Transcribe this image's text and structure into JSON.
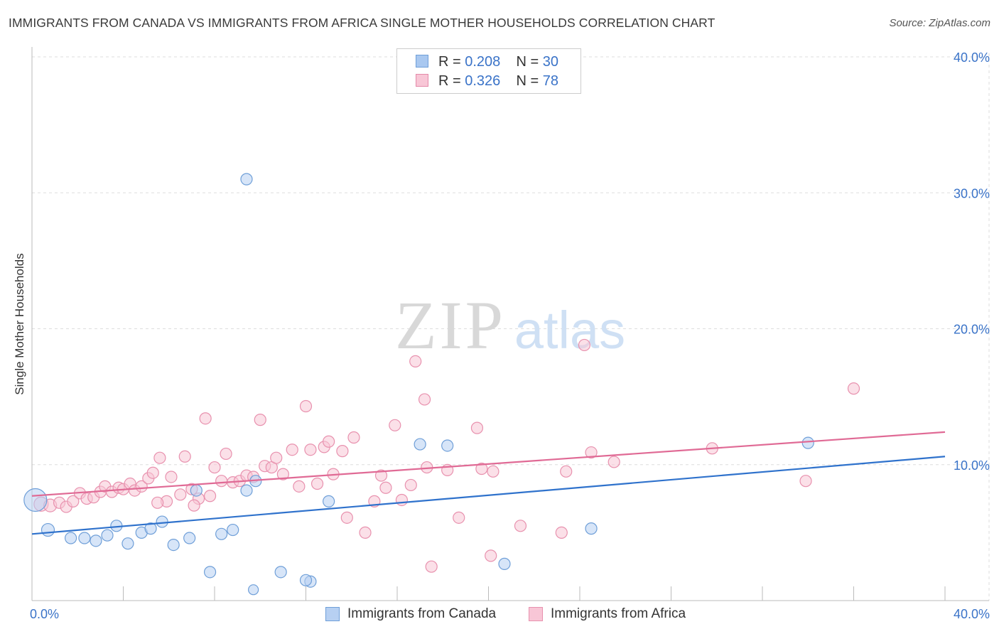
{
  "header": {
    "title": "IMMIGRANTS FROM CANADA VS IMMIGRANTS FROM AFRICA SINGLE MOTHER HOUSEHOLDS CORRELATION CHART",
    "source": "Source: ZipAtlas.com"
  },
  "watermark": {
    "zip": "ZIP",
    "atlas": "atlas"
  },
  "legend_stats": [
    {
      "r_label": "R = ",
      "r_value": "0.208",
      "n_label": "N = ",
      "n_value": "30",
      "color": "#a9c8f0",
      "border": "#6f9fd8"
    },
    {
      "r_label": "R = ",
      "r_value": "0.326",
      "n_label": "N = ",
      "n_value": "78",
      "color": "#f8c6d6",
      "border": "#e48aa9"
    }
  ],
  "colors": {
    "canada_fill": "#b7d0f2",
    "canada_stroke": "#6f9fd8",
    "canada_line": "#2f72cc",
    "africa_fill": "#f8c6d6",
    "africa_stroke": "#e891ae",
    "africa_line": "#e06a95",
    "axis_label": "#3a73c8",
    "grid": "#dddddd"
  },
  "chart_data": {
    "type": "scatter",
    "title": "IMMIGRANTS FROM CANADA VS IMMIGRANTS FROM AFRICA SINGLE MOTHER HOUSEHOLDS CORRELATION CHART",
    "xlabel": "",
    "ylabel": "Single Mother Households",
    "xlim": [
      0,
      40
    ],
    "ylim": [
      0,
      40
    ],
    "x_tick_labels": [
      "0.0%",
      "40.0%"
    ],
    "y_ticks": [
      10,
      20,
      30,
      40
    ],
    "y_tick_labels": [
      "10.0%",
      "20.0%",
      "30.0%",
      "40.0%"
    ],
    "grid": true,
    "legend_position": "bottom",
    "series": [
      {
        "name": "Immigrants from Canada",
        "r": 0.208,
        "n": 30,
        "trend": {
          "x": [
            0,
            40
          ],
          "y": [
            4.9,
            10.6
          ]
        },
        "points": [
          [
            0.15,
            7.4,
            16
          ],
          [
            0.7,
            5.2,
            9
          ],
          [
            1.7,
            4.6,
            8
          ],
          [
            2.3,
            4.6,
            8
          ],
          [
            2.8,
            4.4,
            8
          ],
          [
            3.3,
            4.8,
            8
          ],
          [
            3.7,
            5.5,
            8
          ],
          [
            4.2,
            4.2,
            8
          ],
          [
            4.8,
            5.0,
            8
          ],
          [
            5.2,
            5.3,
            8
          ],
          [
            5.7,
            5.8,
            8
          ],
          [
            6.2,
            4.1,
            8
          ],
          [
            6.9,
            4.6,
            8
          ],
          [
            7.2,
            8.1,
            8
          ],
          [
            7.8,
            2.1,
            8
          ],
          [
            8.3,
            4.9,
            8
          ],
          [
            8.8,
            5.2,
            8
          ],
          [
            9.4,
            8.1,
            8
          ],
          [
            9.8,
            8.8,
            8
          ],
          [
            9.4,
            31.0,
            8
          ],
          [
            10.9,
            2.1,
            8
          ],
          [
            12.2,
            1.4,
            8
          ],
          [
            13.0,
            7.3,
            8
          ],
          [
            17.0,
            11.5,
            8
          ],
          [
            18.2,
            11.4,
            8
          ],
          [
            20.7,
            2.7,
            8
          ],
          [
            24.5,
            5.3,
            8
          ],
          [
            34.0,
            11.6,
            8
          ],
          [
            12.0,
            1.5,
            8
          ],
          [
            9.7,
            0.8,
            7
          ]
        ]
      },
      {
        "name": "Immigrants from Africa",
        "r": 0.326,
        "n": 78,
        "trend": {
          "x": [
            0,
            40
          ],
          "y": [
            7.7,
            12.4
          ]
        },
        "points": [
          [
            0.4,
            7.1,
            10
          ],
          [
            0.8,
            7.0,
            9
          ],
          [
            1.2,
            7.2,
            8
          ],
          [
            1.5,
            6.9,
            8
          ],
          [
            1.8,
            7.3,
            8
          ],
          [
            2.1,
            7.9,
            8
          ],
          [
            2.4,
            7.5,
            8
          ],
          [
            2.7,
            7.6,
            8
          ],
          [
            3.0,
            8.0,
            8
          ],
          [
            3.2,
            8.4,
            8
          ],
          [
            3.5,
            8.0,
            8
          ],
          [
            3.8,
            8.3,
            8
          ],
          [
            4.0,
            8.2,
            8
          ],
          [
            4.3,
            8.6,
            8
          ],
          [
            4.5,
            8.1,
            8
          ],
          [
            4.8,
            8.4,
            8
          ],
          [
            5.1,
            9.0,
            8
          ],
          [
            5.3,
            9.4,
            8
          ],
          [
            5.6,
            10.5,
            8
          ],
          [
            5.9,
            7.3,
            8
          ],
          [
            6.1,
            9.1,
            8
          ],
          [
            6.5,
            7.8,
            8
          ],
          [
            6.7,
            10.6,
            8
          ],
          [
            7.0,
            8.2,
            8
          ],
          [
            7.3,
            7.5,
            8
          ],
          [
            7.6,
            13.4,
            8
          ],
          [
            7.8,
            7.7,
            8
          ],
          [
            8.0,
            9.8,
            8
          ],
          [
            8.3,
            8.8,
            8
          ],
          [
            8.5,
            10.8,
            8
          ],
          [
            8.8,
            8.7,
            8
          ],
          [
            9.1,
            8.8,
            8
          ],
          [
            9.4,
            9.2,
            8
          ],
          [
            9.7,
            9.1,
            8
          ],
          [
            10.0,
            13.3,
            8
          ],
          [
            10.2,
            9.9,
            8
          ],
          [
            10.5,
            9.8,
            8
          ],
          [
            10.7,
            10.5,
            8
          ],
          [
            11.0,
            9.3,
            8
          ],
          [
            11.4,
            11.1,
            8
          ],
          [
            11.7,
            8.4,
            8
          ],
          [
            12.0,
            14.3,
            8
          ],
          [
            12.2,
            11.1,
            8
          ],
          [
            12.5,
            8.6,
            8
          ],
          [
            12.8,
            11.3,
            8
          ],
          [
            13.0,
            11.7,
            8
          ],
          [
            13.2,
            9.3,
            8
          ],
          [
            13.6,
            11.0,
            8
          ],
          [
            13.8,
            6.1,
            8
          ],
          [
            14.1,
            12.0,
            8
          ],
          [
            14.6,
            5.0,
            8
          ],
          [
            15.0,
            7.3,
            8
          ],
          [
            15.3,
            9.2,
            8
          ],
          [
            15.5,
            8.3,
            8
          ],
          [
            15.9,
            12.9,
            8
          ],
          [
            16.2,
            7.4,
            8
          ],
          [
            16.6,
            8.5,
            8
          ],
          [
            16.8,
            17.6,
            8
          ],
          [
            17.2,
            14.8,
            8
          ],
          [
            17.5,
            2.5,
            8
          ],
          [
            17.3,
            9.8,
            8
          ],
          [
            18.2,
            9.6,
            8
          ],
          [
            18.7,
            6.1,
            8
          ],
          [
            19.5,
            12.7,
            8
          ],
          [
            19.7,
            9.7,
            8
          ],
          [
            20.1,
            3.3,
            8
          ],
          [
            20.2,
            9.5,
            8
          ],
          [
            21.4,
            5.5,
            8
          ],
          [
            23.2,
            5.0,
            8
          ],
          [
            23.4,
            9.5,
            8
          ],
          [
            24.2,
            18.8,
            8
          ],
          [
            24.5,
            10.9,
            8
          ],
          [
            25.5,
            10.2,
            8
          ],
          [
            29.8,
            11.2,
            8
          ],
          [
            33.9,
            8.8,
            8
          ],
          [
            36.0,
            15.6,
            8
          ],
          [
            5.5,
            7.2,
            8
          ],
          [
            7.1,
            7.0,
            8
          ]
        ]
      }
    ]
  },
  "legend_bottom": [
    {
      "label": "Immigrants from Canada",
      "color": "#b7d0f2",
      "border": "#6f9fd8"
    },
    {
      "label": "Immigrants from Africa",
      "color": "#f8c6d6",
      "border": "#e891ae"
    }
  ]
}
